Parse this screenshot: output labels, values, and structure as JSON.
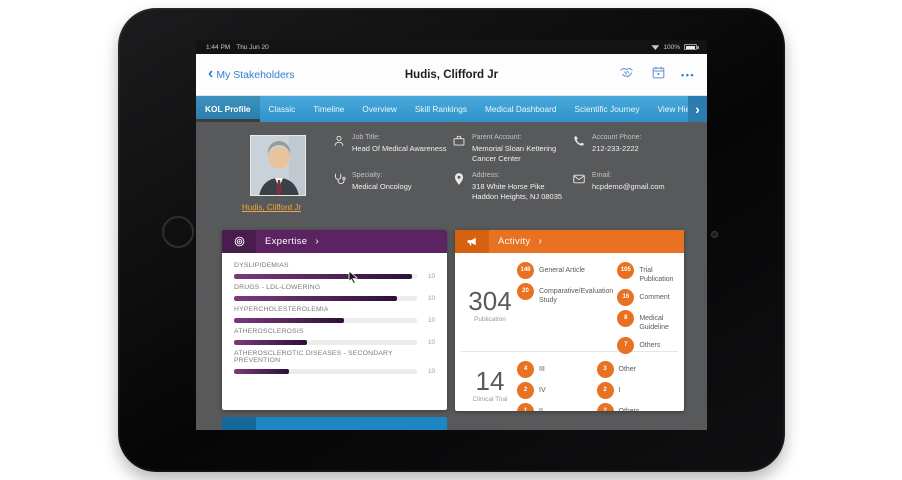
{
  "status_bar": {
    "time": "1:44 PM",
    "date": "Thu Jun 20",
    "battery": "100%"
  },
  "nav": {
    "back_label": "My Stakeholders",
    "back_chevron": "‹",
    "title": "Hudis, Clifford Jr",
    "more": "•••"
  },
  "tabs": [
    {
      "label": "KOL Profile"
    },
    {
      "label": "Classic"
    },
    {
      "label": "Timeline"
    },
    {
      "label": "Overview"
    },
    {
      "label": "Skill Rankings"
    },
    {
      "label": "Medical Dashboard"
    },
    {
      "label": "Scientific Journey"
    },
    {
      "label": "View Hierarchy"
    }
  ],
  "tab_overflow_chevron": "›",
  "profile": {
    "name_link": "Hudis, Clifford Jr",
    "fields": [
      {
        "label": "Job Title:",
        "value": "Head Of Medical Awareness"
      },
      {
        "label": "Specialty:",
        "value": "Medical Oncology"
      },
      {
        "label": "Parent Account:",
        "value": "Memorial Sloan Kettering Cancer Center"
      },
      {
        "label": "Address:",
        "value": "318 White Horse Pike Haddon Heights, NJ 08035"
      },
      {
        "label": "Account Phone:",
        "value": "212-233-2222"
      },
      {
        "label": "Email:",
        "value": "hcpdemo@gmail.com"
      }
    ]
  },
  "expertise": {
    "title": "Expertise",
    "chevron": "›",
    "rows": [
      {
        "label": "DYSLIPIDEMIAS",
        "value": "10",
        "pct": 97
      },
      {
        "label": "DRUGS - LDL-LOWERING",
        "value": "10",
        "pct": 89
      },
      {
        "label": "HYPERCHOLESTEROLEMIA",
        "value": "10",
        "pct": 60
      },
      {
        "label": "ATHEROSCLEROSIS",
        "value": "10",
        "pct": 40
      },
      {
        "label": "ATHEROSCLEROTIC DISEASES - SECONDARY PREVENTION",
        "value": "10",
        "pct": 30
      }
    ]
  },
  "activity": {
    "title": "Activity",
    "chevron": "›",
    "publication": {
      "count": "304",
      "label": "Publication",
      "col_a": [
        {
          "n": "148",
          "label": "General Article"
        },
        {
          "n": "20",
          "label": "Comparative/Evaluation Study"
        }
      ],
      "col_b": [
        {
          "n": "105",
          "label": "Trial Publication"
        },
        {
          "n": "16",
          "label": "Comment"
        },
        {
          "n": "8",
          "label": "Medical Guideline"
        },
        {
          "n": "7",
          "label": "Others"
        }
      ]
    },
    "clinical_trial": {
      "count": "14",
      "label": "Clinical Trial",
      "col_a": [
        {
          "n": "4",
          "label": "III"
        },
        {
          "n": "2",
          "label": "IV"
        },
        {
          "n": "1",
          "label": "II"
        }
      ],
      "col_b": [
        {
          "n": "3",
          "label": "Other"
        },
        {
          "n": "2",
          "label": "I"
        },
        {
          "n": "2",
          "label": "Others"
        }
      ]
    }
  },
  "colors": {
    "tabbar_blue": "#3a9fd4",
    "expertise_purple": "#5c2363",
    "activity_orange": "#e87122",
    "blue_card": "#1d87c6",
    "name_link": "#f0a63d"
  }
}
